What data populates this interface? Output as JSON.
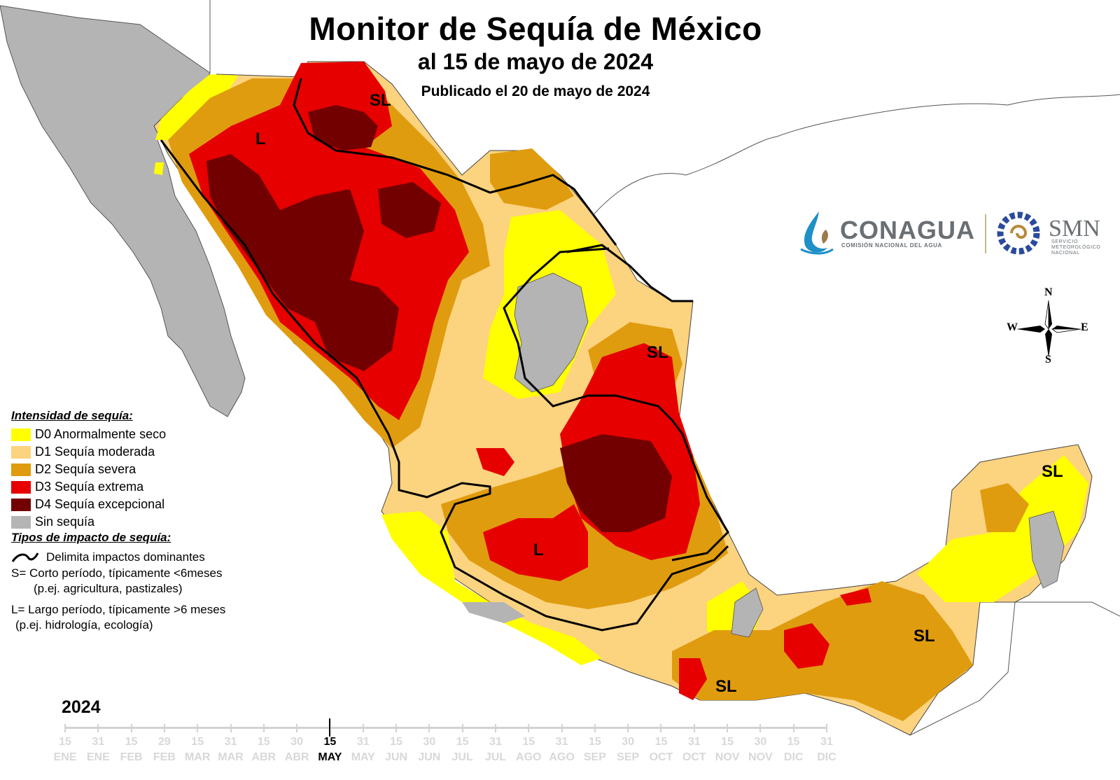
{
  "header": {
    "title": "Monitor de Sequía de México",
    "subtitle": "al 15 de mayo de 2024",
    "published": "Publicado el 20 de mayo de 2024"
  },
  "colors": {
    "D0": "#ffff00",
    "D1": "#fcd37f",
    "D2": "#e09c0f",
    "D3": "#e60000",
    "D4": "#730000",
    "sin_sequia": "#b4b4b4",
    "ocean": "#ffffff",
    "boundary": "#000000"
  },
  "map": {
    "impact_labels": [
      {
        "text": "SL",
        "region": "chihuahua-norte"
      },
      {
        "text": "L",
        "region": "sonora"
      },
      {
        "text": "SL",
        "region": "tamaulipas"
      },
      {
        "text": "L",
        "region": "centro-occidente"
      },
      {
        "text": "SL",
        "region": "yucatan"
      },
      {
        "text": "SL",
        "region": "chiapas"
      },
      {
        "text": "SL",
        "region": "oaxaca"
      }
    ]
  },
  "legend": {
    "intensity_title": "Intensidad de sequía:",
    "items": [
      {
        "code": "D0",
        "label": "D0 Anormalmente seco",
        "color": "#ffff00"
      },
      {
        "code": "D1",
        "label": "D1 Sequía moderada",
        "color": "#fcd37f"
      },
      {
        "code": "D2",
        "label": "D2 Sequía severa",
        "color": "#e09c0f"
      },
      {
        "code": "D3",
        "label": "D3 Sequía extrema",
        "color": "#e60000"
      },
      {
        "code": "D4",
        "label": "D4 Sequía excepcional",
        "color": "#730000"
      },
      {
        "code": "none",
        "label": "Sin sequía",
        "color": "#b4b4b4"
      }
    ],
    "impact_title": "Tipos de impacto de sequía:",
    "impact_line_label": "Delimita impactos dominantes",
    "short_term": "S= Corto período, típicamente <6meses",
    "short_term_example": "(p.ej. agricultura, pastizales)",
    "long_term": "L= Largo período, típicamente >6 meses",
    "long_term_example": "(p.ej. hidrología, ecología)"
  },
  "logos": {
    "conagua": "CONAGUA",
    "conagua_sub": "COMISIÓN NACIONAL DEL AGUA",
    "smn": "SMN",
    "smn_sub1": "SERVICIO",
    "smn_sub2": "METEOROLÓGICO",
    "smn_sub3": "NACIONAL"
  },
  "compass": {
    "n": "N",
    "s": "S",
    "e": "E",
    "w": "W"
  },
  "timeline": {
    "year": "2024",
    "ticks": [
      {
        "day": "15",
        "month": "ENE"
      },
      {
        "day": "31",
        "month": "ENE"
      },
      {
        "day": "15",
        "month": "FEB"
      },
      {
        "day": "29",
        "month": "FEB"
      },
      {
        "day": "15",
        "month": "MAR"
      },
      {
        "day": "31",
        "month": "MAR"
      },
      {
        "day": "15",
        "month": "ABR"
      },
      {
        "day": "30",
        "month": "ABR"
      },
      {
        "day": "15",
        "month": "MAY"
      },
      {
        "day": "31",
        "month": "MAY"
      },
      {
        "day": "15",
        "month": "JUN"
      },
      {
        "day": "30",
        "month": "JUN"
      },
      {
        "day": "15",
        "month": "JUL"
      },
      {
        "day": "31",
        "month": "JUL"
      },
      {
        "day": "15",
        "month": "AGO"
      },
      {
        "day": "31",
        "month": "AGO"
      },
      {
        "day": "15",
        "month": "SEP"
      },
      {
        "day": "30",
        "month": "SEP"
      },
      {
        "day": "15",
        "month": "OCT"
      },
      {
        "day": "31",
        "month": "OCT"
      },
      {
        "day": "15",
        "month": "NOV"
      },
      {
        "day": "30",
        "month": "NOV"
      },
      {
        "day": "15",
        "month": "DIC"
      },
      {
        "day": "31",
        "month": "DIC"
      }
    ],
    "current_index": 8
  }
}
